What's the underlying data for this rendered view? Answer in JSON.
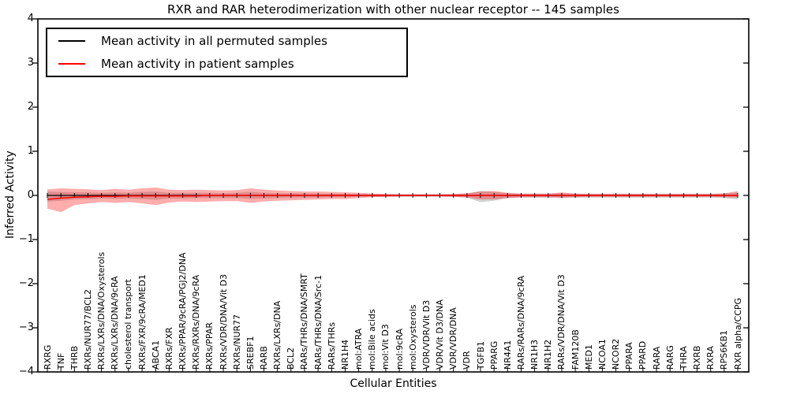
{
  "figure": {
    "title": "RXR and RAR heterodimerization with other nuclear receptor -- 145 samples",
    "x_axis_label": "Cellular Entities",
    "y_axis_label": "Inferred Activity",
    "y_tick_labels": [
      "4",
      "3",
      "2",
      "1",
      "0",
      "−1",
      "−2",
      "−3",
      "−4"
    ],
    "legend": {
      "items": [
        {
          "label": "Mean activity in all permuted samples",
          "color": "#000000"
        },
        {
          "label": "Mean activity in patient samples",
          "color": "#ff0000"
        }
      ]
    }
  },
  "chart_data": {
    "type": "line",
    "title": "RXR and RAR heterodimerization with other nuclear receptor -- 145 samples",
    "xlabel": "Cellular Entities",
    "ylabel": "Inferred Activity",
    "ylim": [
      -4,
      4
    ],
    "yticks": [
      4,
      3,
      2,
      1,
      0,
      -1,
      -2,
      -3,
      -4
    ],
    "grid": false,
    "legend_position": "upper left",
    "categories": [
      "RXRG",
      "TNF",
      "THRB",
      "RXRs/NUR77/BCL2",
      "RXRs/LXRs/DNA/Oxysterols",
      "RXRs/LXRs/DNA/9cRA",
      "cholesterol transport",
      "RXRs/FXR/9cRA/MED1",
      "ABCA1",
      "RXRs/FXR",
      "RXRs/PPAR/9cRA/PGJ2/DNA",
      "RXRs/RXRs/DNA/9cRA",
      "RXRs/PPAR",
      "RXRs/VDR/DNA/Vit D3",
      "RXRs/NUR77",
      "SREBF1",
      "RARB",
      "RXRs/LXRs/DNA",
      "BCL2",
      "RARs/THRs/DNA/SMRT",
      "RARs/THRs/DNA/Src-1",
      "RARs/THRs",
      "NR1H4",
      "mol:ATRA",
      "mol:Bile acids",
      "mol:Vit D3",
      "mol:9cRA",
      "mol:Oxysterols",
      "VDR/VDR/Vit D3",
      "VDR/Vit D3/DNA",
      "VDR/VDR/DNA",
      "VDR",
      "TGFB1",
      "PPARG",
      "NR4A1",
      "RARs/RARs/DNA/9cRA",
      "NR1H3",
      "NR1H2",
      "RARs/VDR/DNA/Vit D3",
      "FAM120B",
      "MED1",
      "NCOA1",
      "NCOR2",
      "PPARA",
      "PPARD",
      "RARA",
      "RARG",
      "THRA",
      "RXRB",
      "RXRA",
      "RPS6KB1",
      "RXR alpha/CCPG"
    ],
    "series": [
      {
        "name": "Mean activity in all permuted samples",
        "color": "#000000",
        "values": [
          0,
          0,
          0,
          0,
          0,
          0,
          0,
          0,
          0,
          0,
          0,
          0,
          0,
          0,
          0,
          0,
          0,
          0,
          0,
          0,
          0,
          0,
          0,
          0,
          0,
          0,
          0,
          0,
          0,
          0,
          0,
          0,
          0,
          0,
          0,
          0,
          0,
          0,
          0,
          0,
          0,
          0,
          0,
          0,
          0,
          0,
          0,
          0,
          0,
          0,
          0,
          0
        ]
      },
      {
        "name": "Mean activity in patient samples",
        "color": "#ff0000",
        "values": [
          -0.09,
          -0.06,
          -0.04,
          -0.03,
          -0.02,
          -0.02,
          -0.01,
          -0.01,
          -0.01,
          -0.01,
          -0.01,
          -0.01,
          0,
          0,
          0,
          0,
          0,
          0,
          0,
          0,
          0,
          0,
          0,
          0,
          0,
          0,
          0,
          0,
          0,
          0,
          0,
          0,
          0,
          0,
          0,
          0,
          0,
          0,
          0,
          0,
          0,
          0,
          0,
          0,
          0,
          0,
          0,
          0,
          0,
          0,
          0,
          0
        ]
      }
    ],
    "bands": [
      {
        "name": "permuted samples spread",
        "fill": "rgba(200,200,200,0.85)",
        "upper": [
          0.09,
          0.08,
          0.07,
          0.07,
          0.06,
          0.07,
          0.06,
          0.08,
          0.09,
          0.06,
          0.06,
          0.06,
          0.06,
          0.05,
          0.06,
          0.08,
          0.06,
          0.05,
          0.05,
          0.05,
          0.04,
          0.04,
          0.04,
          0.03,
          0.03,
          0.03,
          0.03,
          0.03,
          0.03,
          0.03,
          0.03,
          0.04,
          0.1,
          0.08,
          0.05,
          0.04,
          0.04,
          0.04,
          0.05,
          0.04,
          0.04,
          0.04,
          0.04,
          0.04,
          0.04,
          0.04,
          0.04,
          0.04,
          0.04,
          0.04,
          0.05,
          0.07
        ],
        "lower": [
          -0.14,
          -0.12,
          -0.09,
          -0.08,
          -0.07,
          -0.08,
          -0.07,
          -0.08,
          -0.1,
          -0.07,
          -0.07,
          -0.06,
          -0.06,
          -0.06,
          -0.06,
          -0.08,
          -0.07,
          -0.06,
          -0.05,
          -0.05,
          -0.05,
          -0.04,
          -0.04,
          -0.03,
          -0.03,
          -0.03,
          -0.03,
          -0.03,
          -0.03,
          -0.03,
          -0.03,
          -0.05,
          -0.15,
          -0.12,
          -0.06,
          -0.05,
          -0.05,
          -0.05,
          -0.06,
          -0.05,
          -0.05,
          -0.05,
          -0.05,
          -0.05,
          -0.05,
          -0.05,
          -0.05,
          -0.05,
          -0.05,
          -0.05,
          -0.06,
          -0.09
        ]
      },
      {
        "name": "patient samples spread",
        "fill": "rgba(255,0,0,0.32)",
        "upper": [
          0.14,
          0.16,
          0.15,
          0.14,
          0.12,
          0.15,
          0.13,
          0.16,
          0.18,
          0.13,
          0.12,
          0.13,
          0.12,
          0.11,
          0.12,
          0.16,
          0.13,
          0.11,
          0.1,
          0.09,
          0.09,
          0.08,
          0.07,
          0.06,
          0.04,
          0.03,
          0.02,
          0.02,
          0.02,
          0.02,
          0.03,
          0.05,
          0.09,
          0.1,
          0.06,
          0.04,
          0.04,
          0.04,
          0.07,
          0.04,
          0.03,
          0.03,
          0.03,
          0.03,
          0.03,
          0.03,
          0.03,
          0.03,
          0.03,
          0.03,
          0.04,
          0.1
        ],
        "lower": [
          -0.3,
          -0.38,
          -0.22,
          -0.18,
          -0.15,
          -0.17,
          -0.15,
          -0.18,
          -0.22,
          -0.16,
          -0.14,
          -0.15,
          -0.14,
          -0.13,
          -0.13,
          -0.17,
          -0.14,
          -0.12,
          -0.11,
          -0.1,
          -0.09,
          -0.08,
          -0.08,
          -0.06,
          -0.04,
          -0.03,
          -0.02,
          -0.02,
          -0.02,
          -0.02,
          -0.03,
          -0.05,
          -0.09,
          -0.09,
          -0.06,
          -0.04,
          -0.04,
          -0.04,
          -0.05,
          -0.04,
          -0.03,
          -0.03,
          -0.03,
          -0.03,
          -0.03,
          -0.03,
          -0.03,
          -0.03,
          -0.03,
          -0.03,
          -0.04,
          -0.05
        ]
      }
    ]
  }
}
